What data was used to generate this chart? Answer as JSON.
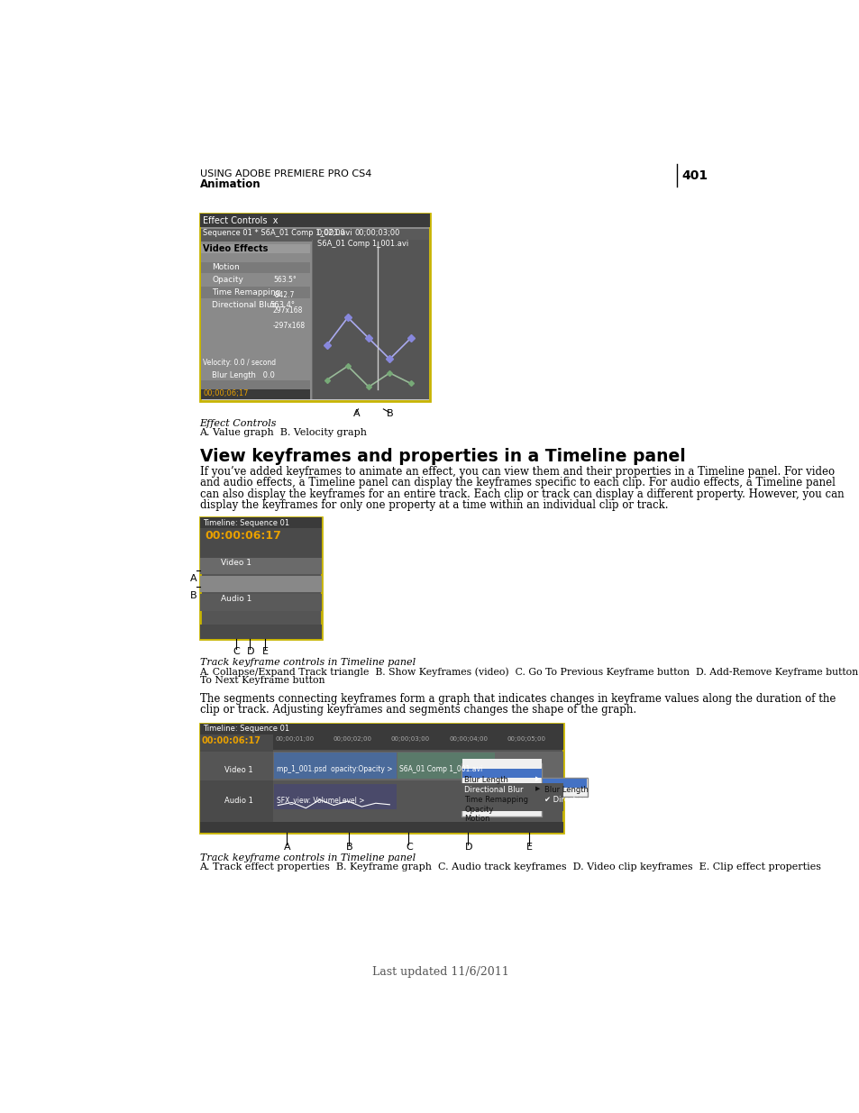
{
  "page_number": "401",
  "header_line1": "USING ADOBE PREMIERE PRO CS4",
  "header_line2": "Animation",
  "bg_color": "#ffffff",
  "text_color": "#000000",
  "section_title": "View keyframes and properties in a Timeline panel",
  "caption1_title": "Effect Controls",
  "caption1_body": "A. Value graph  B. Velocity graph",
  "caption2_title": "Track keyframe controls in Timeline panel",
  "caption2_body_line1": "A. Collapse/Expand Track triangle  B. Show Keyframes (video)  C. Go To Previous Keyframe button  D. Add-Remove Keyframe button  E. Go",
  "caption2_body_line2": "To Next Keyframe button",
  "caption3_title": "Track keyframe controls in Timeline panel",
  "caption3_body": "A. Track effect properties  B. Keyframe graph  C. Audio track keyframes  D. Video clip keyframes  E. Clip effect properties",
  "footer_text": "Last updated 11/6/2011",
  "body_lines1": [
    "If you’ve added keyframes to animate an effect, you can view them and their properties in a Timeline panel. For video",
    "and audio effects, a Timeline panel can display the keyframes specific to each clip. For audio effects, a Timeline panel",
    "can also display the keyframes for an entire track. Each clip or track can display a different property. However, you can",
    "display the keyframes for only one property at a time within an individual clip or track."
  ],
  "body_lines2": [
    "The segments connecting keyframes form a graph that indicates changes in keyframe values along the duration of the",
    "clip or track. Adjusting keyframes and segments changes the shape of the graph."
  ]
}
